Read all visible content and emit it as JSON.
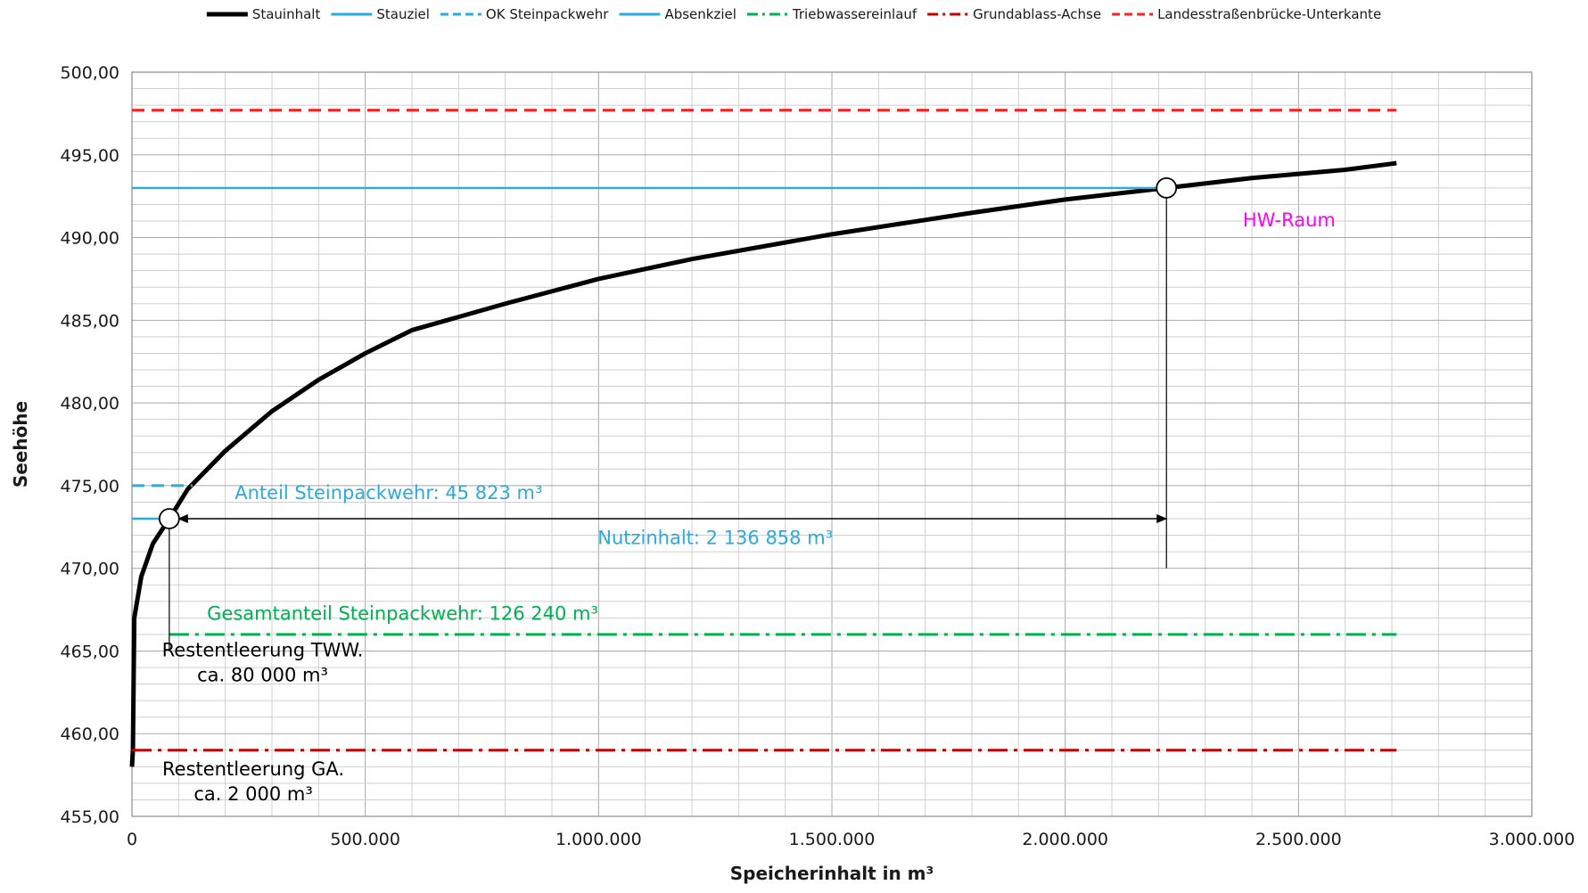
{
  "chart_data": {
    "type": "line",
    "xlabel": "Speicherinhalt in m³",
    "ylabel": "Seehöhe",
    "xlim": [
      0,
      3000000
    ],
    "ylim": [
      455,
      500
    ],
    "x_ticks": [
      0,
      500000,
      1000000,
      1500000,
      2000000,
      2500000,
      3000000
    ],
    "x_tick_labels": [
      "0",
      "500.000",
      "1.000.000",
      "1.500.000",
      "2.000.000",
      "2.500.000",
      "3.000.000"
    ],
    "y_ticks": [
      455,
      460,
      465,
      470,
      475,
      480,
      485,
      490,
      495,
      500
    ],
    "y_tick_labels": [
      "455,00",
      "460,00",
      "465,00",
      "470,00",
      "475,00",
      "480,00",
      "485,00",
      "490,00",
      "495,00",
      "500,00"
    ],
    "grid": true,
    "legend_position": "top",
    "series": [
      {
        "name": "Stauinhalt",
        "color": "#000000",
        "style": "solid-thick",
        "x": [
          0,
          2000,
          5000,
          20000,
          45000,
          80000,
          120000,
          200000,
          300000,
          400000,
          500000,
          600000,
          800000,
          1000000,
          1200000,
          1500000,
          1800000,
          2000000,
          2217000,
          2400000,
          2600000,
          2710000
        ],
        "y": [
          458,
          459,
          467,
          469.5,
          471.5,
          473,
          474.8,
          477.1,
          479.5,
          481.4,
          483.0,
          484.4,
          486.0,
          487.5,
          488.7,
          490.2,
          491.5,
          492.3,
          493.0,
          493.6,
          494.1,
          494.5
        ]
      },
      {
        "name": "Stauziel",
        "color": "#29aae1",
        "style": "solid",
        "x": [
          0,
          2217000
        ],
        "y": [
          493.0,
          493.0
        ]
      },
      {
        "name": "OK Steinpackwehr",
        "color": "#29aae1",
        "style": "dashed",
        "x": [
          0,
          130000
        ],
        "y": [
          475.0,
          475.0
        ]
      },
      {
        "name": "Absenkziel",
        "color": "#29aae1",
        "style": "solid",
        "x": [
          0,
          80000
        ],
        "y": [
          473.0,
          473.0
        ]
      },
      {
        "name": "Triebwassereinlauf",
        "color": "#00b050",
        "style": "dashdot",
        "x": [
          80000,
          2710000
        ],
        "y": [
          466.0,
          466.0
        ]
      },
      {
        "name": "Grundablass-Achse",
        "color": "#c00000",
        "style": "dashdot",
        "x": [
          0,
          2710000
        ],
        "y": [
          459.0,
          459.0
        ]
      },
      {
        "name": "Landesstraßenbrücke-Unterkante",
        "color": "#ff2020",
        "style": "dashed",
        "x": [
          0,
          2710000
        ],
        "y": [
          497.7,
          497.7
        ]
      }
    ],
    "markers": [
      {
        "name": "Absenkziel-Punkt",
        "x": 80000,
        "y": 473.0
      },
      {
        "name": "Stauziel-Punkt",
        "x": 2217000,
        "y": 493.0
      }
    ],
    "annotations": [
      {
        "text": "HW-Raum",
        "color": "#ff00ff",
        "x": 2480000,
        "y": 491.0
      },
      {
        "text": "Anteil Steinpackwehr: 45 823 m³",
        "color": "#29aae1",
        "x": 550000,
        "y": 474.5
      },
      {
        "text": "Nutzinhalt: 2 136 858 m³",
        "color": "#29aae1",
        "x": 1250000,
        "y": 471.8
      },
      {
        "text": "Gesamtanteil  Steinpackwehr: 126 240 m³",
        "color": "#00b050",
        "x": 580000,
        "y": 467.2
      },
      {
        "text": "Restentleerung TWW.",
        "color": "#000000",
        "x": 280000,
        "y": 465.0
      },
      {
        "text": "ca. 80 000 m³",
        "color": "#000000",
        "x": 280000,
        "y": 463.5
      },
      {
        "text": "Restentleerung GA.",
        "color": "#000000",
        "x": 260000,
        "y": 457.8
      },
      {
        "text": "ca. 2 000 m³",
        "color": "#000000",
        "x": 260000,
        "y": 456.3
      }
    ],
    "dimension_arrow": {
      "x_start": 80000,
      "x_end": 2217000,
      "y": 473.0
    }
  }
}
